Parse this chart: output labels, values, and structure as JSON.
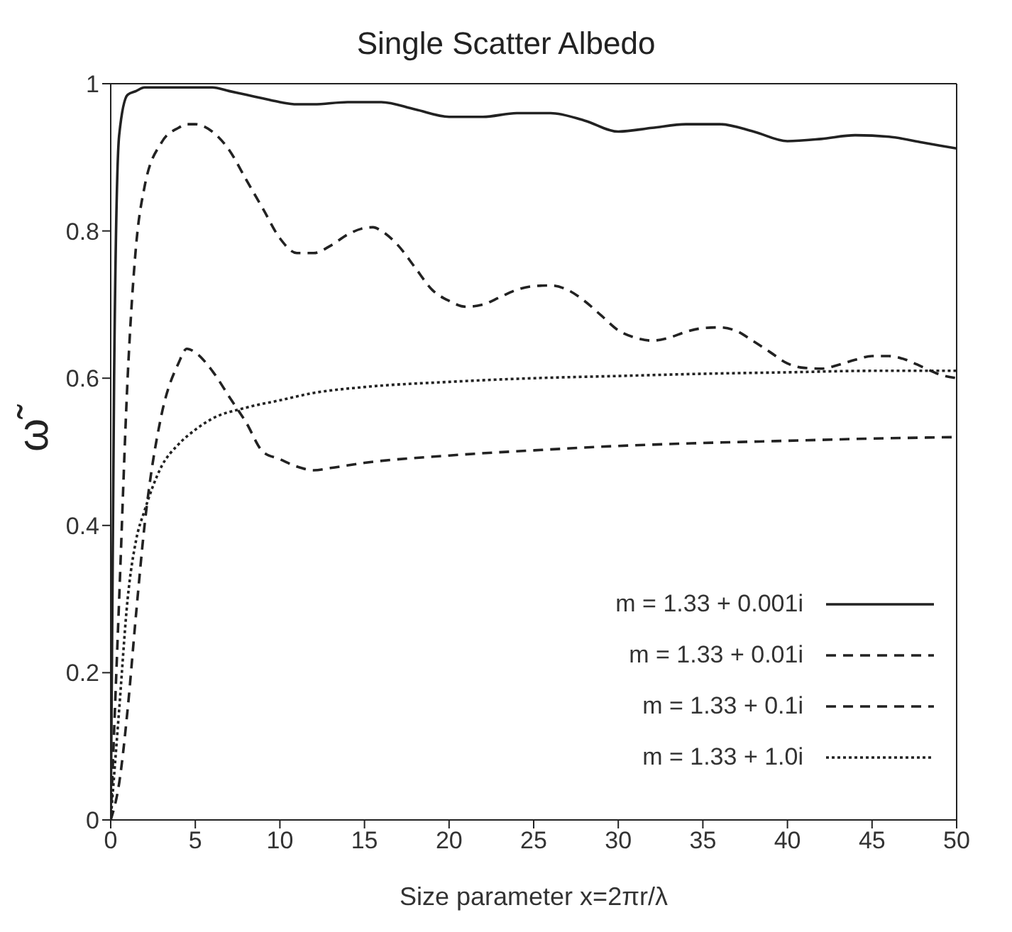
{
  "chart_data": {
    "type": "line",
    "title": "Single Scatter Albedo",
    "xlabel": "Size parameter x=2πr/λ",
    "ylabel": "ω̃",
    "xlim": [
      0,
      50
    ],
    "xticks": [
      0,
      5,
      10,
      15,
      20,
      25,
      30,
      35,
      40,
      45,
      50
    ],
    "ylim": [
      0,
      1
    ],
    "yticks": [
      0,
      0.2,
      0.4,
      0.6,
      0.8,
      1
    ],
    "grid": false,
    "legend": "bottom right",
    "marker": "none",
    "series": [
      {
        "name": "m = 1.33 + 0.001i",
        "color": "#222222",
        "line_style": "solid",
        "x": [
          0,
          0.2,
          0.5,
          1,
          1.5,
          2,
          4,
          6,
          7,
          8,
          9,
          10,
          11,
          12,
          14,
          16,
          18,
          20,
          22,
          24,
          26,
          28,
          30,
          32,
          34,
          36,
          38,
          40,
          42,
          44,
          46,
          48,
          50
        ],
        "values": [
          0,
          0.6,
          0.93,
          0.985,
          0.99,
          0.995,
          0.995,
          0.995,
          0.99,
          0.985,
          0.98,
          0.975,
          0.972,
          0.972,
          0.975,
          0.975,
          0.965,
          0.955,
          0.955,
          0.96,
          0.96,
          0.95,
          0.935,
          0.94,
          0.945,
          0.945,
          0.935,
          0.922,
          0.925,
          0.93,
          0.928,
          0.92,
          0.912
        ]
      },
      {
        "name": "m = 1.33 + 0.01i",
        "color": "#222222",
        "line_style": "dashed",
        "x": [
          0,
          0.5,
          1,
          1.5,
          2,
          3,
          4,
          4.5,
          5,
          6,
          7,
          8,
          9,
          10,
          11,
          12,
          13,
          14,
          15,
          15.5,
          16,
          17,
          18,
          19,
          20,
          21,
          22,
          23,
          24,
          25,
          26,
          27,
          28,
          29,
          30,
          31,
          32,
          33,
          34,
          35,
          36,
          37,
          38,
          39,
          40,
          41,
          42,
          43,
          44,
          45,
          46,
          47,
          48,
          49,
          50
        ],
        "values": [
          0,
          0.3,
          0.6,
          0.78,
          0.86,
          0.92,
          0.94,
          0.945,
          0.945,
          0.935,
          0.91,
          0.87,
          0.83,
          0.79,
          0.77,
          0.77,
          0.78,
          0.795,
          0.804,
          0.805,
          0.8,
          0.78,
          0.75,
          0.72,
          0.705,
          0.697,
          0.7,
          0.71,
          0.72,
          0.725,
          0.726,
          0.72,
          0.705,
          0.685,
          0.665,
          0.655,
          0.651,
          0.655,
          0.663,
          0.668,
          0.669,
          0.664,
          0.65,
          0.635,
          0.62,
          0.614,
          0.613,
          0.618,
          0.625,
          0.63,
          0.63,
          0.625,
          0.615,
          0.605,
          0.6
        ]
      },
      {
        "name": "m = 1.33 + 0.1i",
        "color": "#222222",
        "line_style": "dashed",
        "x": [
          0,
          0.5,
          1,
          1.5,
          2,
          3,
          4,
          4.5,
          5,
          6,
          7,
          8,
          9,
          10,
          11,
          12,
          13,
          15,
          20,
          25,
          30,
          35,
          40,
          45,
          50
        ],
        "values": [
          0,
          0.05,
          0.15,
          0.28,
          0.4,
          0.55,
          0.62,
          0.64,
          0.635,
          0.61,
          0.575,
          0.54,
          0.5,
          0.49,
          0.48,
          0.475,
          0.478,
          0.485,
          0.495,
          0.502,
          0.508,
          0.512,
          0.515,
          0.518,
          0.52
        ]
      },
      {
        "name": "m = 1.33 + 1.0i",
        "color": "#222222",
        "line_style": "dotted",
        "x": [
          0,
          0.5,
          1,
          1.5,
          2,
          3,
          4,
          5,
          6,
          8,
          10,
          12,
          15,
          20,
          25,
          30,
          35,
          40,
          45,
          50
        ],
        "values": [
          0,
          0.15,
          0.3,
          0.38,
          0.42,
          0.48,
          0.51,
          0.53,
          0.545,
          0.56,
          0.57,
          0.58,
          0.588,
          0.595,
          0.6,
          0.603,
          0.606,
          0.608,
          0.61,
          0.61
        ]
      }
    ]
  }
}
